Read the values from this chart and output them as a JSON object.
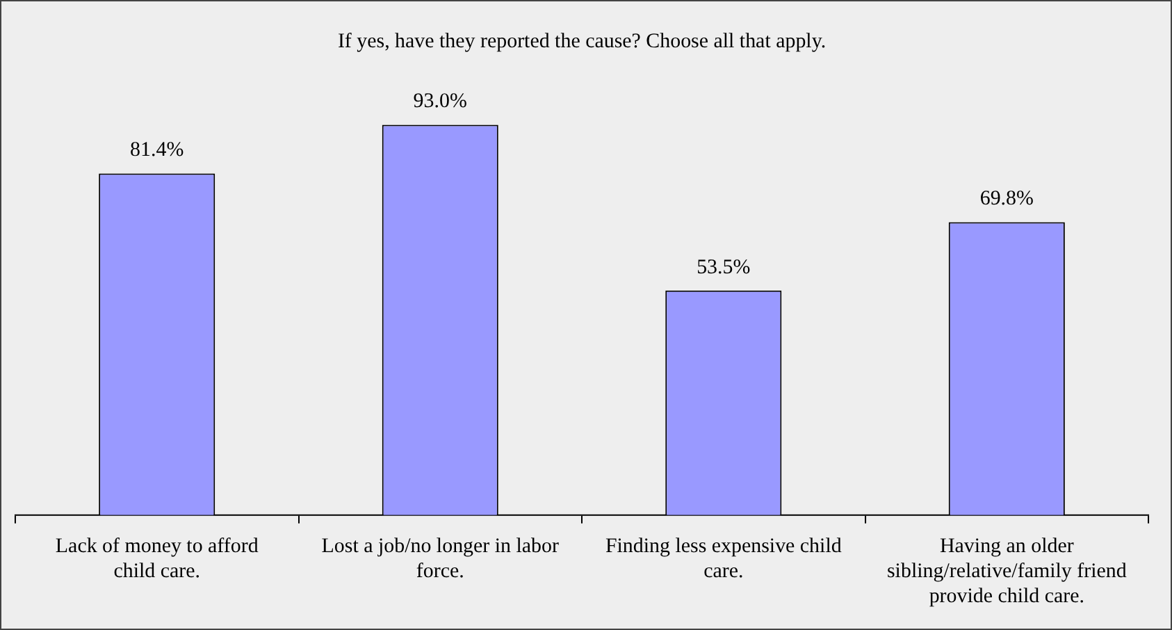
{
  "chart_data": {
    "type": "bar",
    "title": "If yes, have they reported the cause? Choose all that apply.",
    "categories": [
      "Lack of money to afford child care.",
      "Lost a job/no longer in labor force.",
      "Finding less expensive child care.",
      "Having an older sibling/relative/family friend provide child care."
    ],
    "values": [
      81.4,
      93.0,
      53.5,
      69.8
    ],
    "value_labels": [
      "81.4%",
      "93.0%",
      "53.5%",
      "69.8%"
    ],
    "color": "#9999ff",
    "grid": false,
    "legend": false
  }
}
